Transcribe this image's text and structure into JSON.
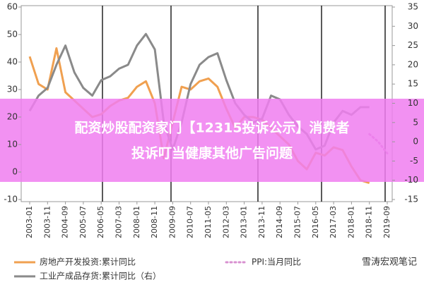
{
  "chart_data": {
    "type": "line",
    "x": [
      "2003-01",
      "2003-06",
      "2003-11",
      "2004-04",
      "2004-09",
      "2005-02",
      "2005-07",
      "2005-12",
      "2006-05",
      "2006-10",
      "2007-03",
      "2007-08",
      "2008-01",
      "2008-06",
      "2008-11",
      "2009-04",
      "2009-09",
      "2010-02",
      "2010-07",
      "2010-12",
      "2011-05",
      "2011-10",
      "2012-03",
      "2012-08",
      "2013-01",
      "2013-06",
      "2013-11",
      "2014-04",
      "2014-09",
      "2015-02",
      "2015-07",
      "2015-12",
      "2016-05",
      "2016-10",
      "2017-03",
      "2017-08",
      "2018-01",
      "2018-06",
      "2018-11",
      "2019-04",
      "2019-09"
    ],
    "xlim": [
      "2003-01",
      "2019-09"
    ],
    "xticks": [
      "2003-01",
      "2003-11",
      "2004-09",
      "2005-07",
      "2006-05",
      "2007-03",
      "2008-01",
      "2008-11",
      "2009-09",
      "2010-07",
      "2011-05",
      "2012-03",
      "2013-01",
      "2013-11",
      "2014-09",
      "2015-07",
      "2016-05",
      "2017-03",
      "2018-01",
      "2018-11",
      "2019-09"
    ],
    "ylim": [
      -10,
      60
    ],
    "yticks": [
      -10,
      0,
      10,
      20,
      30,
      40,
      50,
      60
    ],
    "y2lim": [
      -15,
      35
    ],
    "y2ticks": [
      -15,
      -10,
      -5,
      0,
      5,
      10,
      15,
      20,
      25,
      30,
      35
    ],
    "series": [
      {
        "name": "房地产开发投资:累计同比",
        "color": "#f0a050",
        "axis": "y",
        "style": "solid",
        "values": [
          42,
          32,
          30,
          45,
          29,
          26,
          23,
          20,
          21,
          24,
          26,
          27,
          31,
          33,
          25,
          5,
          18,
          31,
          30,
          33,
          34,
          31,
          23,
          16,
          20,
          20,
          19,
          16,
          13,
          10,
          4,
          1,
          7,
          6,
          9,
          8,
          2,
          -3,
          -4,
          null,
          null
        ]
      },
      {
        "name": "PPI:当月同比",
        "color": "#d890d0",
        "axis": "y2",
        "style": "dotted",
        "values": [
          null,
          null,
          null,
          null,
          null,
          null,
          null,
          null,
          null,
          null,
          null,
          null,
          null,
          null,
          null,
          null,
          null,
          null,
          null,
          null,
          null,
          null,
          null,
          null,
          null,
          null,
          null,
          null,
          null,
          null,
          null,
          null,
          null,
          null,
          null,
          null,
          null,
          null,
          2,
          0,
          -3
        ]
      },
      {
        "name": "工业产成品存货:累计同比（右）",
        "color": "#8a8a8a",
        "axis": "y2",
        "style": "solid",
        "values": [
          8,
          12,
          14,
          20,
          25,
          18,
          14,
          12,
          16,
          17,
          19,
          20,
          25,
          28,
          24,
          5,
          -2,
          5,
          15,
          20,
          22,
          23,
          16,
          10,
          7,
          5,
          6,
          12,
          11,
          7,
          4,
          2,
          -2,
          -1,
          5,
          8,
          7,
          9,
          9,
          null,
          null
        ]
      }
    ]
  },
  "overlay": {
    "lines": [
      "配资炒股配资家门【12315投诉公示】消费者",
      "投诉叮当健康其他广告问题"
    ]
  },
  "watermark": "雪涛宏观笔记"
}
